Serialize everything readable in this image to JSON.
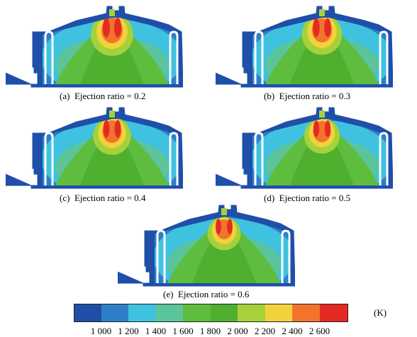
{
  "panels": [
    {
      "letter": "(a)",
      "label": "Ejection ratio = 0.2",
      "ratio": 0.2
    },
    {
      "letter": "(b)",
      "label": "Ejection ratio = 0.3",
      "ratio": 0.3
    },
    {
      "letter": "(c)",
      "label": "Ejection ratio = 0.4",
      "ratio": 0.4
    },
    {
      "letter": "(d)",
      "label": "Ejection ratio = 0.5",
      "ratio": 0.5
    },
    {
      "letter": "(e)",
      "label": "Ejection ratio = 0.6",
      "ratio": 0.6
    }
  ],
  "legend": {
    "ticks": [
      "1 000",
      "1 200",
      "1 400",
      "1 600",
      "1 800",
      "2 000",
      "2 200",
      "2 400",
      "2 600"
    ],
    "unit": "(K)",
    "colors": [
      "#1f4fa8",
      "#2f7fc8",
      "#3fc2e0",
      "#5cc49a",
      "#5ebd3e",
      "#4fb02f",
      "#a6d13a",
      "#f2d23c",
      "#f2742c",
      "#e42a22"
    ]
  }
}
